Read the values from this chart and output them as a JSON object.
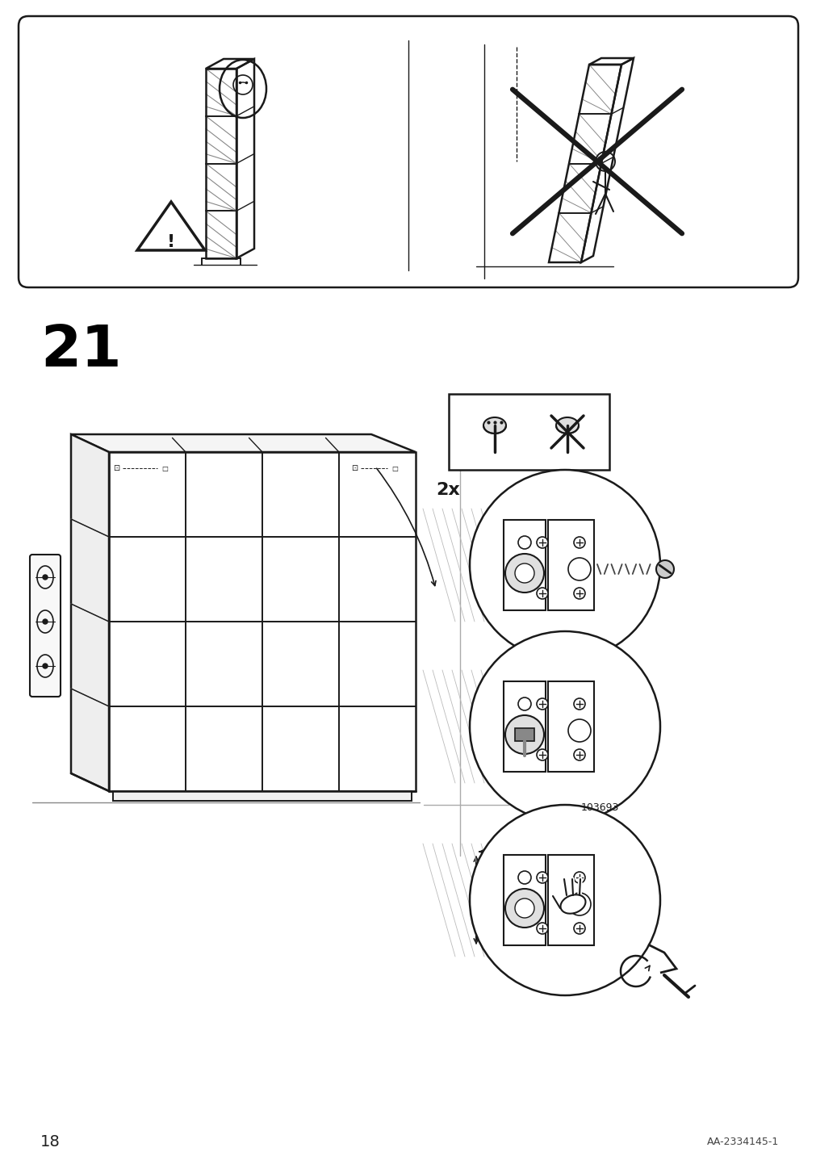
{
  "page_number": "18",
  "doc_number": "AA-2334145-1",
  "step_number": "21",
  "bg_color": "#ffffff",
  "line_color": "#1a1a1a"
}
